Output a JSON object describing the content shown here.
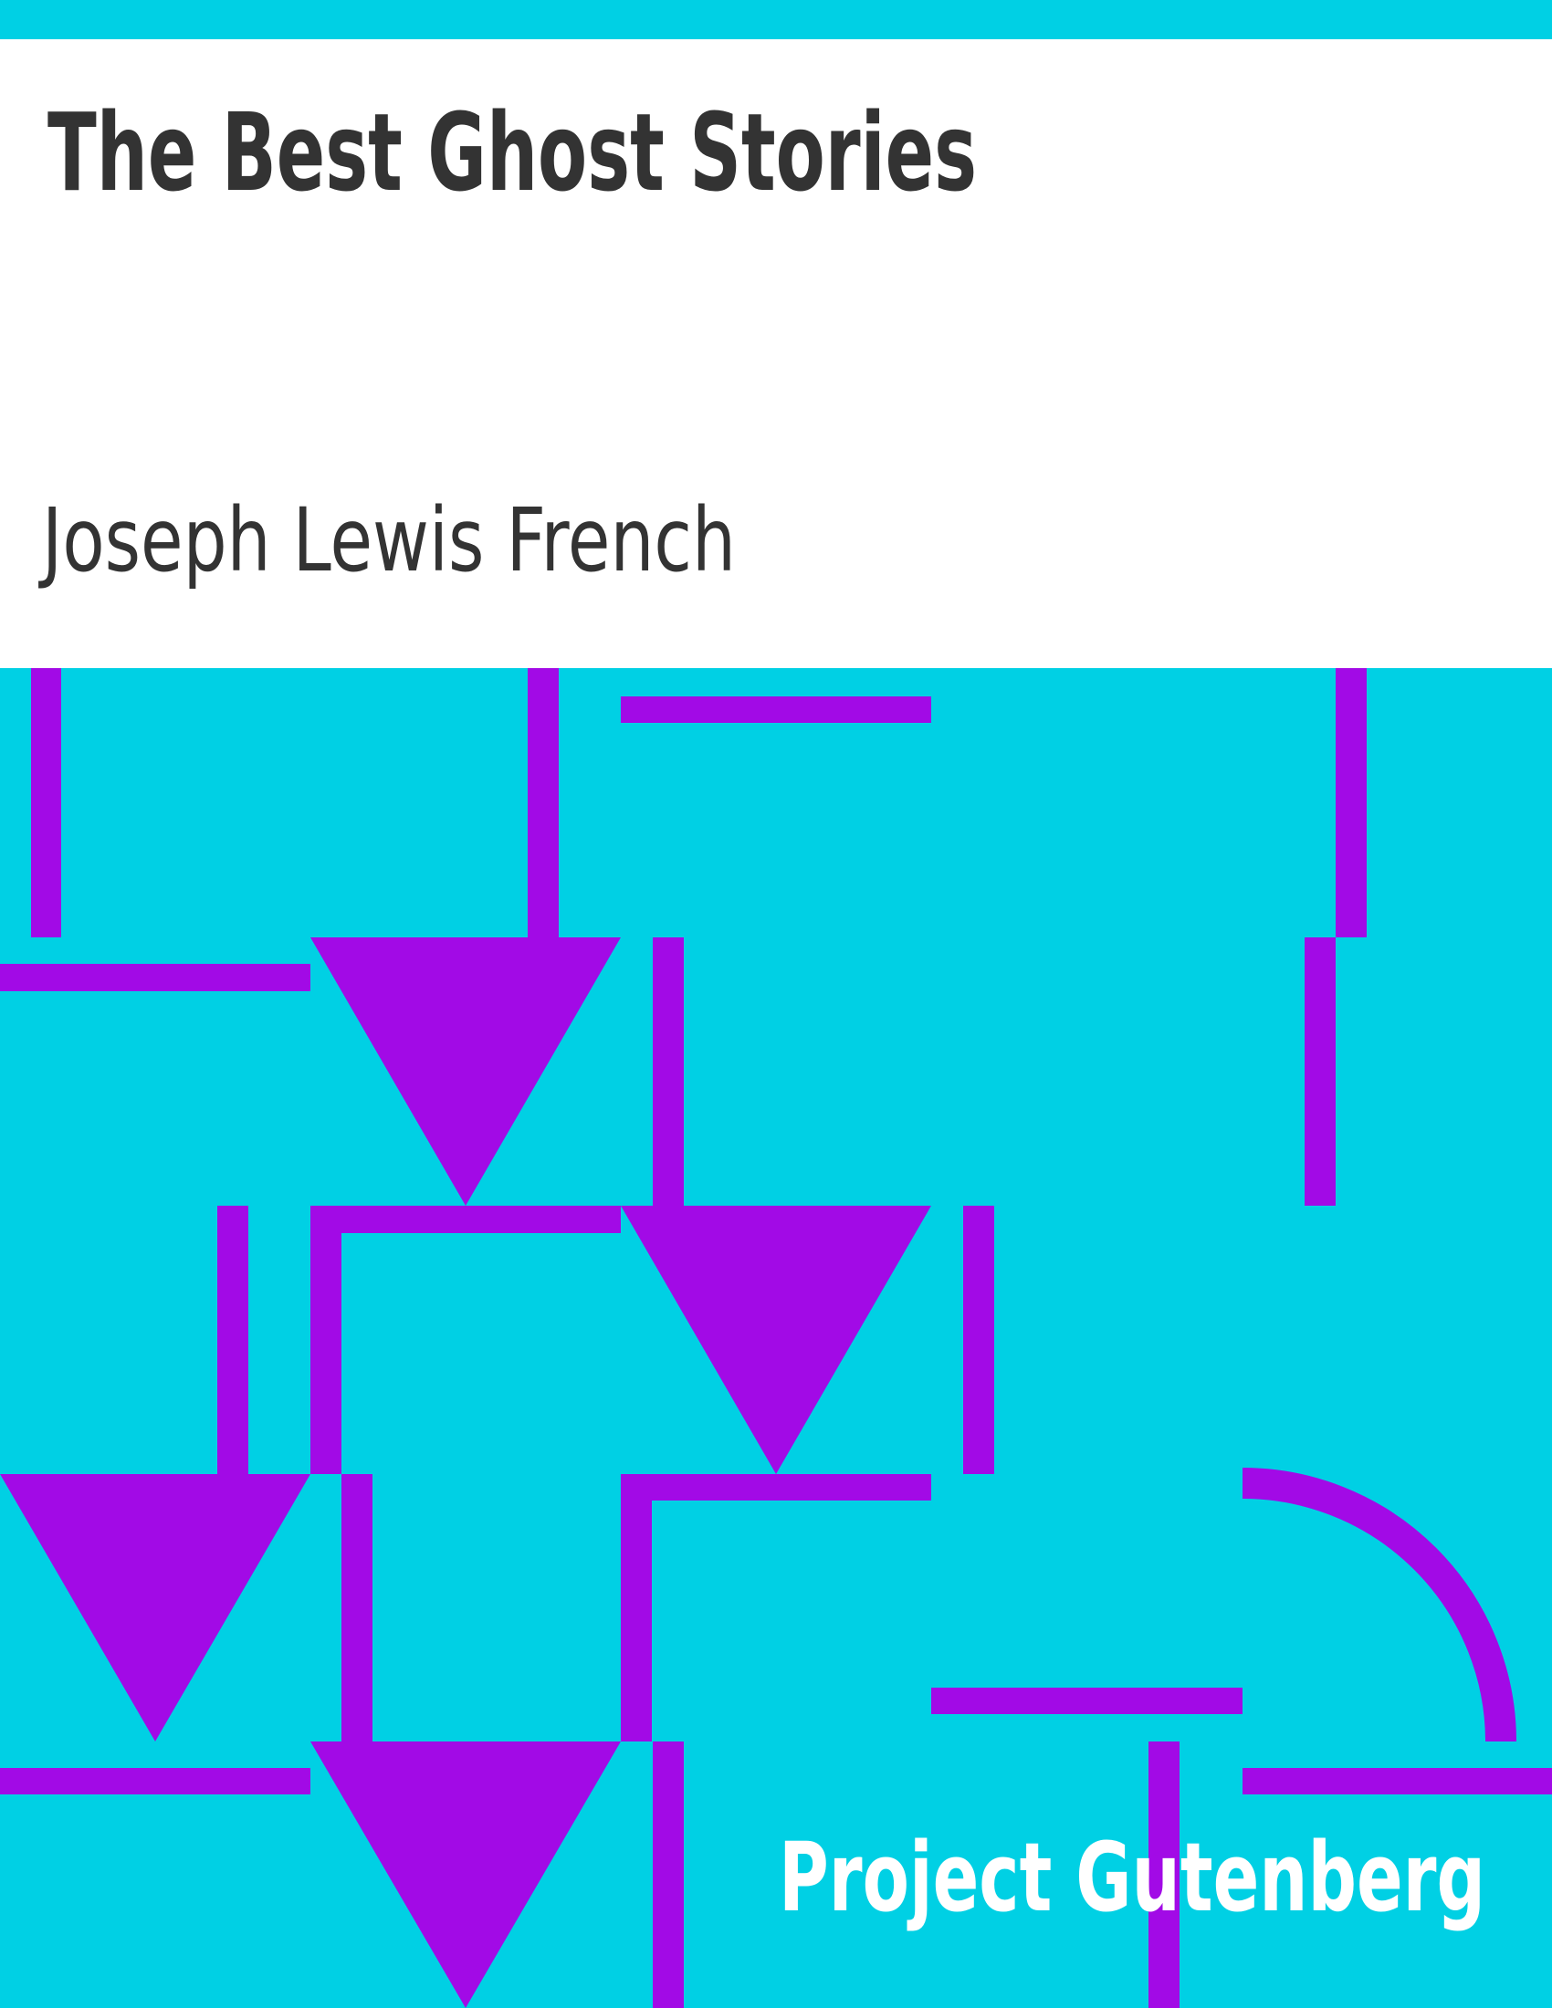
{
  "cover": {
    "title": "The Best Ghost Stories",
    "author": "Joseph Lewis French",
    "publisher": "Project Gutenberg"
  }
}
